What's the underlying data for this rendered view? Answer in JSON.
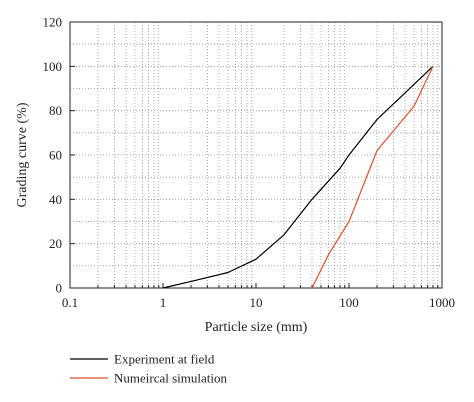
{
  "chart_data": {
    "type": "line",
    "xlabel": "Particle size (mm)",
    "ylabel": "Grading curve (%)",
    "xscale": "log",
    "xlim": [
      0.1,
      1000
    ],
    "ylim": [
      0,
      120
    ],
    "x_ticks": [
      "0.1",
      "1",
      "10",
      "100",
      "1000"
    ],
    "x_tick_values": [
      0.1,
      1,
      10,
      100,
      1000
    ],
    "y_ticks": [
      "0",
      "20",
      "40",
      "60",
      "80",
      "100",
      "120"
    ],
    "y_tick_values": [
      0,
      20,
      40,
      60,
      80,
      100,
      120
    ],
    "grid": "dotted minor grid",
    "legend_position": "bottom-left, below plot",
    "series": [
      {
        "name": "Experiment at field",
        "color": "#000000",
        "points": [
          [
            1,
            0
          ],
          [
            2,
            3
          ],
          [
            5,
            7
          ],
          [
            10,
            13
          ],
          [
            20,
            24
          ],
          [
            40,
            40
          ],
          [
            80,
            54
          ],
          [
            100,
            60
          ],
          [
            200,
            76
          ],
          [
            400,
            88
          ],
          [
            800,
            100
          ]
        ]
      },
      {
        "name": "Numeircal simulation",
        "color": "#e0522b",
        "points": [
          [
            40,
            0
          ],
          [
            60,
            15
          ],
          [
            100,
            30
          ],
          [
            200,
            62
          ],
          [
            500,
            82
          ],
          [
            800,
            100
          ]
        ]
      }
    ]
  }
}
